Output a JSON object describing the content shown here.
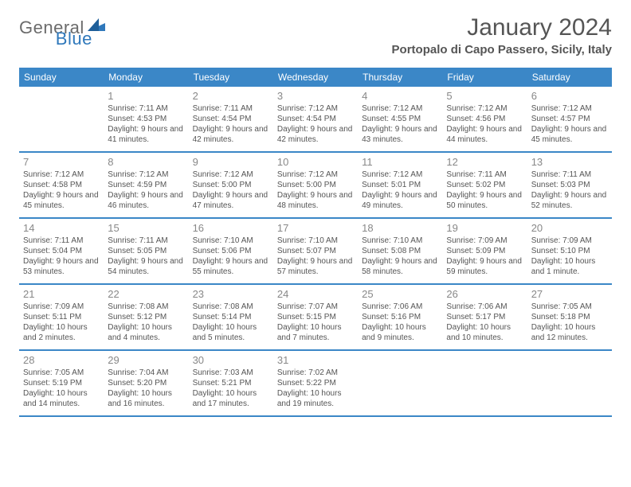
{
  "logo": {
    "text1": "General",
    "text2": "Blue"
  },
  "title": "January 2024",
  "location": "Portopalo di Capo Passero, Sicily, Italy",
  "colors": {
    "header_bg": "#3b87c7",
    "header_text": "#ffffff",
    "week_border": "#3b87c7",
    "daynum": "#888888",
    "body_text": "#555555",
    "logo_gray": "#6b6b6b",
    "logo_blue": "#2f78bb",
    "background": "#ffffff"
  },
  "day_labels": [
    "Sunday",
    "Monday",
    "Tuesday",
    "Wednesday",
    "Thursday",
    "Friday",
    "Saturday"
  ],
  "weeks": [
    [
      {
        "n": "",
        "sunrise": "",
        "sunset": "",
        "daylight": ""
      },
      {
        "n": "1",
        "sunrise": "Sunrise: 7:11 AM",
        "sunset": "Sunset: 4:53 PM",
        "daylight": "Daylight: 9 hours and 41 minutes."
      },
      {
        "n": "2",
        "sunrise": "Sunrise: 7:11 AM",
        "sunset": "Sunset: 4:54 PM",
        "daylight": "Daylight: 9 hours and 42 minutes."
      },
      {
        "n": "3",
        "sunrise": "Sunrise: 7:12 AM",
        "sunset": "Sunset: 4:54 PM",
        "daylight": "Daylight: 9 hours and 42 minutes."
      },
      {
        "n": "4",
        "sunrise": "Sunrise: 7:12 AM",
        "sunset": "Sunset: 4:55 PM",
        "daylight": "Daylight: 9 hours and 43 minutes."
      },
      {
        "n": "5",
        "sunrise": "Sunrise: 7:12 AM",
        "sunset": "Sunset: 4:56 PM",
        "daylight": "Daylight: 9 hours and 44 minutes."
      },
      {
        "n": "6",
        "sunrise": "Sunrise: 7:12 AM",
        "sunset": "Sunset: 4:57 PM",
        "daylight": "Daylight: 9 hours and 45 minutes."
      }
    ],
    [
      {
        "n": "7",
        "sunrise": "Sunrise: 7:12 AM",
        "sunset": "Sunset: 4:58 PM",
        "daylight": "Daylight: 9 hours and 45 minutes."
      },
      {
        "n": "8",
        "sunrise": "Sunrise: 7:12 AM",
        "sunset": "Sunset: 4:59 PM",
        "daylight": "Daylight: 9 hours and 46 minutes."
      },
      {
        "n": "9",
        "sunrise": "Sunrise: 7:12 AM",
        "sunset": "Sunset: 5:00 PM",
        "daylight": "Daylight: 9 hours and 47 minutes."
      },
      {
        "n": "10",
        "sunrise": "Sunrise: 7:12 AM",
        "sunset": "Sunset: 5:00 PM",
        "daylight": "Daylight: 9 hours and 48 minutes."
      },
      {
        "n": "11",
        "sunrise": "Sunrise: 7:12 AM",
        "sunset": "Sunset: 5:01 PM",
        "daylight": "Daylight: 9 hours and 49 minutes."
      },
      {
        "n": "12",
        "sunrise": "Sunrise: 7:11 AM",
        "sunset": "Sunset: 5:02 PM",
        "daylight": "Daylight: 9 hours and 50 minutes."
      },
      {
        "n": "13",
        "sunrise": "Sunrise: 7:11 AM",
        "sunset": "Sunset: 5:03 PM",
        "daylight": "Daylight: 9 hours and 52 minutes."
      }
    ],
    [
      {
        "n": "14",
        "sunrise": "Sunrise: 7:11 AM",
        "sunset": "Sunset: 5:04 PM",
        "daylight": "Daylight: 9 hours and 53 minutes."
      },
      {
        "n": "15",
        "sunrise": "Sunrise: 7:11 AM",
        "sunset": "Sunset: 5:05 PM",
        "daylight": "Daylight: 9 hours and 54 minutes."
      },
      {
        "n": "16",
        "sunrise": "Sunrise: 7:10 AM",
        "sunset": "Sunset: 5:06 PM",
        "daylight": "Daylight: 9 hours and 55 minutes."
      },
      {
        "n": "17",
        "sunrise": "Sunrise: 7:10 AM",
        "sunset": "Sunset: 5:07 PM",
        "daylight": "Daylight: 9 hours and 57 minutes."
      },
      {
        "n": "18",
        "sunrise": "Sunrise: 7:10 AM",
        "sunset": "Sunset: 5:08 PM",
        "daylight": "Daylight: 9 hours and 58 minutes."
      },
      {
        "n": "19",
        "sunrise": "Sunrise: 7:09 AM",
        "sunset": "Sunset: 5:09 PM",
        "daylight": "Daylight: 9 hours and 59 minutes."
      },
      {
        "n": "20",
        "sunrise": "Sunrise: 7:09 AM",
        "sunset": "Sunset: 5:10 PM",
        "daylight": "Daylight: 10 hours and 1 minute."
      }
    ],
    [
      {
        "n": "21",
        "sunrise": "Sunrise: 7:09 AM",
        "sunset": "Sunset: 5:11 PM",
        "daylight": "Daylight: 10 hours and 2 minutes."
      },
      {
        "n": "22",
        "sunrise": "Sunrise: 7:08 AM",
        "sunset": "Sunset: 5:12 PM",
        "daylight": "Daylight: 10 hours and 4 minutes."
      },
      {
        "n": "23",
        "sunrise": "Sunrise: 7:08 AM",
        "sunset": "Sunset: 5:14 PM",
        "daylight": "Daylight: 10 hours and 5 minutes."
      },
      {
        "n": "24",
        "sunrise": "Sunrise: 7:07 AM",
        "sunset": "Sunset: 5:15 PM",
        "daylight": "Daylight: 10 hours and 7 minutes."
      },
      {
        "n": "25",
        "sunrise": "Sunrise: 7:06 AM",
        "sunset": "Sunset: 5:16 PM",
        "daylight": "Daylight: 10 hours and 9 minutes."
      },
      {
        "n": "26",
        "sunrise": "Sunrise: 7:06 AM",
        "sunset": "Sunset: 5:17 PM",
        "daylight": "Daylight: 10 hours and 10 minutes."
      },
      {
        "n": "27",
        "sunrise": "Sunrise: 7:05 AM",
        "sunset": "Sunset: 5:18 PM",
        "daylight": "Daylight: 10 hours and 12 minutes."
      }
    ],
    [
      {
        "n": "28",
        "sunrise": "Sunrise: 7:05 AM",
        "sunset": "Sunset: 5:19 PM",
        "daylight": "Daylight: 10 hours and 14 minutes."
      },
      {
        "n": "29",
        "sunrise": "Sunrise: 7:04 AM",
        "sunset": "Sunset: 5:20 PM",
        "daylight": "Daylight: 10 hours and 16 minutes."
      },
      {
        "n": "30",
        "sunrise": "Sunrise: 7:03 AM",
        "sunset": "Sunset: 5:21 PM",
        "daylight": "Daylight: 10 hours and 17 minutes."
      },
      {
        "n": "31",
        "sunrise": "Sunrise: 7:02 AM",
        "sunset": "Sunset: 5:22 PM",
        "daylight": "Daylight: 10 hours and 19 minutes."
      },
      {
        "n": "",
        "sunrise": "",
        "sunset": "",
        "daylight": ""
      },
      {
        "n": "",
        "sunrise": "",
        "sunset": "",
        "daylight": ""
      },
      {
        "n": "",
        "sunrise": "",
        "sunset": "",
        "daylight": ""
      }
    ]
  ]
}
